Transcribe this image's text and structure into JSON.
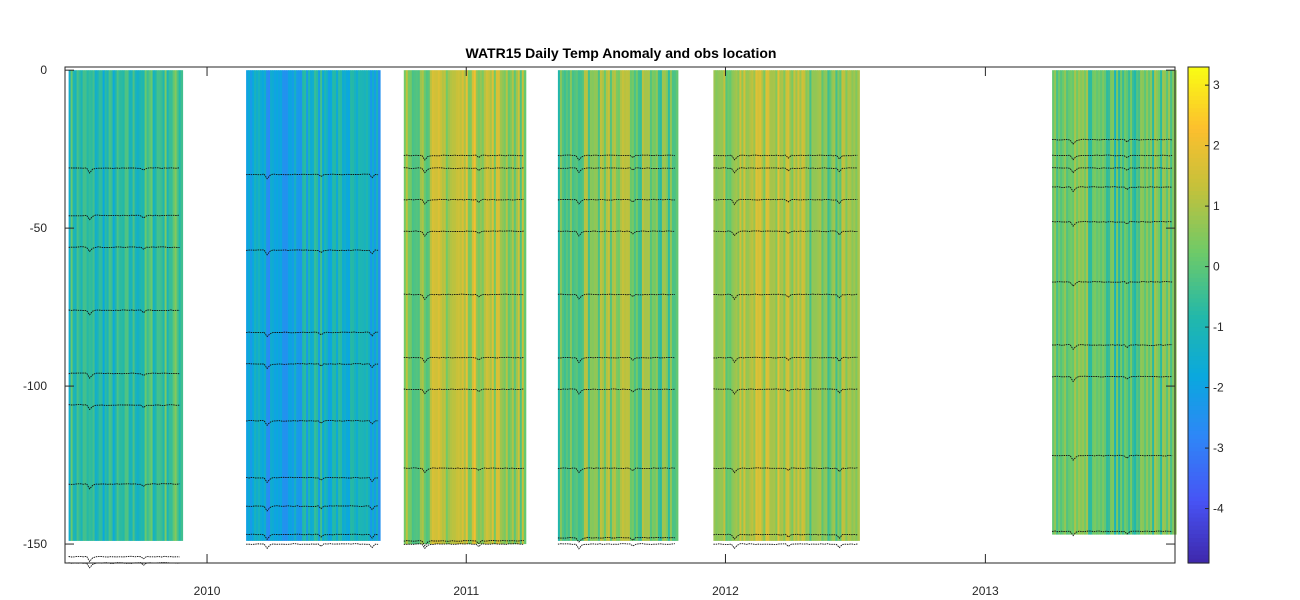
{
  "chart_data": {
    "type": "heatmap",
    "title": "WATR15 Daily Temp Anomaly and obs location",
    "xlabel": "",
    "ylabel": "",
    "x_ticks": [
      "2010",
      "2011",
      "2012",
      "2013"
    ],
    "y_ticks": [
      "0",
      "-50",
      "-100",
      "-150"
    ],
    "xlim": [
      "2009-06-15",
      "2013-09-25"
    ],
    "ylim": [
      -156,
      1
    ],
    "colorbar": {
      "ticks": [
        "3",
        "2",
        "1",
        "0",
        "-1",
        "-2",
        "-3",
        "-4"
      ],
      "range": [
        -4.9,
        3.3
      ],
      "colormap": "parula"
    },
    "grid": false,
    "deployments": [
      {
        "start": "2009-06-20",
        "end": "2009-11-25",
        "bottom": -149,
        "mean_anomaly": -0.6,
        "obs_depths": [
          -31,
          -46,
          -56,
          -76,
          -96,
          -106,
          -131,
          -154,
          -156
        ]
      },
      {
        "start": "2010-02-25",
        "end": "2010-08-30",
        "bottom": -149,
        "mean_anomaly": -1.6,
        "obs_depths": [
          -33,
          -57,
          -83,
          -93,
          -111,
          -129,
          -138,
          -147,
          -150
        ]
      },
      {
        "start": "2010-10-05",
        "end": "2011-03-25",
        "bottom": -150,
        "mean_anomaly": 0.9,
        "obs_depths": [
          -27,
          -31,
          -41,
          -51,
          -71,
          -91,
          -101,
          -126,
          -149,
          -150
        ]
      },
      {
        "start": "2011-05-10",
        "end": "2011-10-25",
        "bottom": -149,
        "mean_anomaly": 0.2,
        "obs_depths": [
          -27,
          -31,
          -41,
          -51,
          -71,
          -91,
          -101,
          -126,
          -148,
          -150
        ]
      },
      {
        "start": "2011-12-15",
        "end": "2012-07-05",
        "bottom": -149,
        "mean_anomaly": 0.8,
        "obs_depths": [
          -27,
          -31,
          -41,
          -51,
          -71,
          -91,
          -101,
          -126,
          -147,
          -150
        ]
      },
      {
        "start": "2013-04-05",
        "end": "2013-09-25",
        "bottom": -147,
        "mean_anomaly": 0.1,
        "obs_depths": [
          -22,
          -27,
          -31,
          -37,
          -48,
          -67,
          -87,
          -97,
          -122,
          -146
        ]
      }
    ]
  }
}
